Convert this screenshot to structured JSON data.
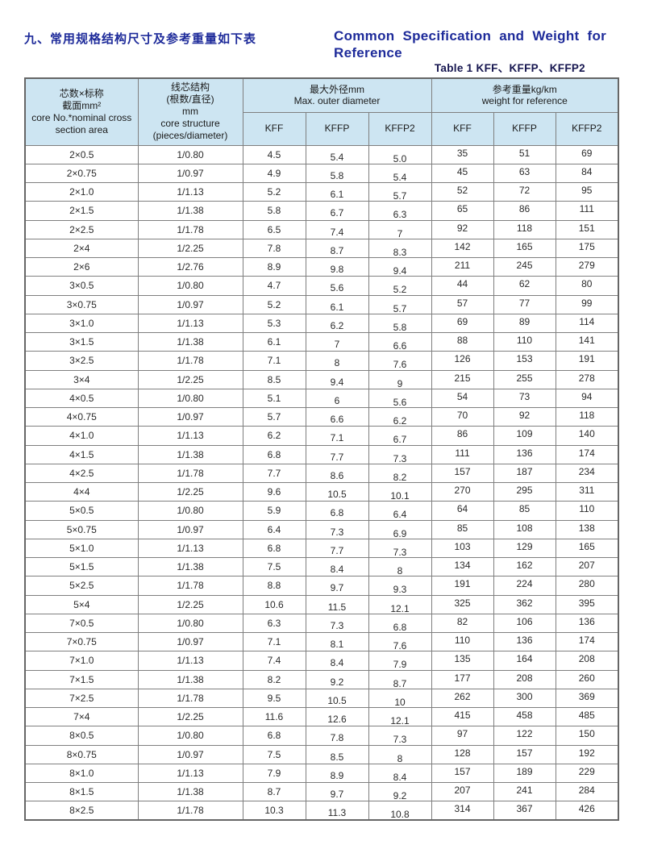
{
  "page": {
    "title_zh": "九、常用规格结构尺寸及参考重量如下表",
    "title_en_line1": "Common Specification and Weight for",
    "title_en_line2": "Reference",
    "caption": "Table 1  KFF、KFFP、KFFP2"
  },
  "colors": {
    "title_blue": "#1e2b9a",
    "caption_navy": "#15154f",
    "header_bg": "#cde5f2",
    "border_gray": "#7f7f7f"
  },
  "table": {
    "header": {
      "col_core": {
        "lines": [
          "芯数×标称",
          "截面mm²",
          "core No.*nominal cross",
          "section area"
        ]
      },
      "col_structure": {
        "lines": [
          "线芯结构",
          "(根数/直径)",
          "mm",
          "core structure",
          "(pieces/diameter)"
        ]
      },
      "group_diameter": {
        "zh": "最大外径mm",
        "en": "Max. outer diameter"
      },
      "group_weight": {
        "zh": "参考重量kg/km",
        "en": "weight for reference"
      },
      "sub_columns": [
        "KFF",
        "KFFP",
        "KFFP2",
        "KFF",
        "KFFP",
        "KFFP2"
      ]
    },
    "rows": [
      [
        "2×0.5",
        "1/0.80",
        "4.5",
        "5.4",
        "5.0",
        "35",
        "51",
        "69"
      ],
      [
        "2×0.75",
        "1/0.97",
        "4.9",
        "5.8",
        "5.4",
        "45",
        "63",
        "84"
      ],
      [
        "2×1.0",
        "1/1.13",
        "5.2",
        "6.1",
        "5.7",
        "52",
        "72",
        "95"
      ],
      [
        "2×1.5",
        "1/1.38",
        "5.8",
        "6.7",
        "6.3",
        "65",
        "86",
        "111"
      ],
      [
        "2×2.5",
        "1/1.78",
        "6.5",
        "7.4",
        "7",
        "92",
        "118",
        "151"
      ],
      [
        "2×4",
        "1/2.25",
        "7.8",
        "8.7",
        "8.3",
        "142",
        "165",
        "175"
      ],
      [
        "2×6",
        "1/2.76",
        "8.9",
        "9.8",
        "9.4",
        "211",
        "245",
        "279"
      ],
      [
        "3×0.5",
        "1/0.80",
        "4.7",
        "5.6",
        "5.2",
        "44",
        "62",
        "80"
      ],
      [
        "3×0.75",
        "1/0.97",
        "5.2",
        "6.1",
        "5.7",
        "57",
        "77",
        "99"
      ],
      [
        "3×1.0",
        "1/1.13",
        "5.3",
        "6.2",
        "5.8",
        "69",
        "89",
        "114"
      ],
      [
        "3×1.5",
        "1/1.38",
        "6.1",
        "7",
        "6.6",
        "88",
        "110",
        "141"
      ],
      [
        "3×2.5",
        "1/1.78",
        "7.1",
        "8",
        "7.6",
        "126",
        "153",
        "191"
      ],
      [
        "3×4",
        "1/2.25",
        "8.5",
        "9.4",
        "9",
        "215",
        "255",
        "278"
      ],
      [
        "4×0.5",
        "1/0.80",
        "5.1",
        "6",
        "5.6",
        "54",
        "73",
        "94"
      ],
      [
        "4×0.75",
        "1/0.97",
        "5.7",
        "6.6",
        "6.2",
        "70",
        "92",
        "118"
      ],
      [
        "4×1.0",
        "1/1.13",
        "6.2",
        "7.1",
        "6.7",
        "86",
        "109",
        "140"
      ],
      [
        "4×1.5",
        "1/1.38",
        "6.8",
        "7.7",
        "7.3",
        "111",
        "136",
        "174"
      ],
      [
        "4×2.5",
        "1/1.78",
        "7.7",
        "8.6",
        "8.2",
        "157",
        "187",
        "234"
      ],
      [
        "4×4",
        "1/2.25",
        "9.6",
        "10.5",
        "10.1",
        "270",
        "295",
        "311"
      ],
      [
        "5×0.5",
        "1/0.80",
        "5.9",
        "6.8",
        "6.4",
        "64",
        "85",
        "110"
      ],
      [
        "5×0.75",
        "1/0.97",
        "6.4",
        "7.3",
        "6.9",
        "85",
        "108",
        "138"
      ],
      [
        "5×1.0",
        "1/1.13",
        "6.8",
        "7.7",
        "7.3",
        "103",
        "129",
        "165"
      ],
      [
        "5×1.5",
        "1/1.38",
        "7.5",
        "8.4",
        "8",
        "134",
        "162",
        "207"
      ],
      [
        "5×2.5",
        "1/1.78",
        "8.8",
        "9.7",
        "9.3",
        "191",
        "224",
        "280"
      ],
      [
        "5×4",
        "1/2.25",
        "10.6",
        "11.5",
        "12.1",
        "325",
        "362",
        "395"
      ],
      [
        "7×0.5",
        "1/0.80",
        "6.3",
        "7.3",
        "6.8",
        "82",
        "106",
        "136"
      ],
      [
        "7×0.75",
        "1/0.97",
        "7.1",
        "8.1",
        "7.6",
        "110",
        "136",
        "174"
      ],
      [
        "7×1.0",
        "1/1.13",
        "7.4",
        "8.4",
        "7.9",
        "135",
        "164",
        "208"
      ],
      [
        "7×1.5",
        "1/1.38",
        "8.2",
        "9.2",
        "8.7",
        "177",
        "208",
        "260"
      ],
      [
        "7×2.5",
        "1/1.78",
        "9.5",
        "10.5",
        "10",
        "262",
        "300",
        "369"
      ],
      [
        "7×4",
        "1/2.25",
        "11.6",
        "12.6",
        "12.1",
        "415",
        "458",
        "485"
      ],
      [
        "8×0.5",
        "1/0.80",
        "6.8",
        "7.8",
        "7.3",
        "97",
        "122",
        "150"
      ],
      [
        "8×0.75",
        "1/0.97",
        "7.5",
        "8.5",
        "8",
        "128",
        "157",
        "192"
      ],
      [
        "8×1.0",
        "1/1.13",
        "7.9",
        "8.9",
        "8.4",
        "157",
        "189",
        "229"
      ],
      [
        "8×1.5",
        "1/1.38",
        "8.7",
        "9.7",
        "9.2",
        "207",
        "241",
        "284"
      ],
      [
        "8×2.5",
        "1/1.78",
        "10.3",
        "11.3",
        "10.8",
        "314",
        "367",
        "426"
      ]
    ]
  }
}
